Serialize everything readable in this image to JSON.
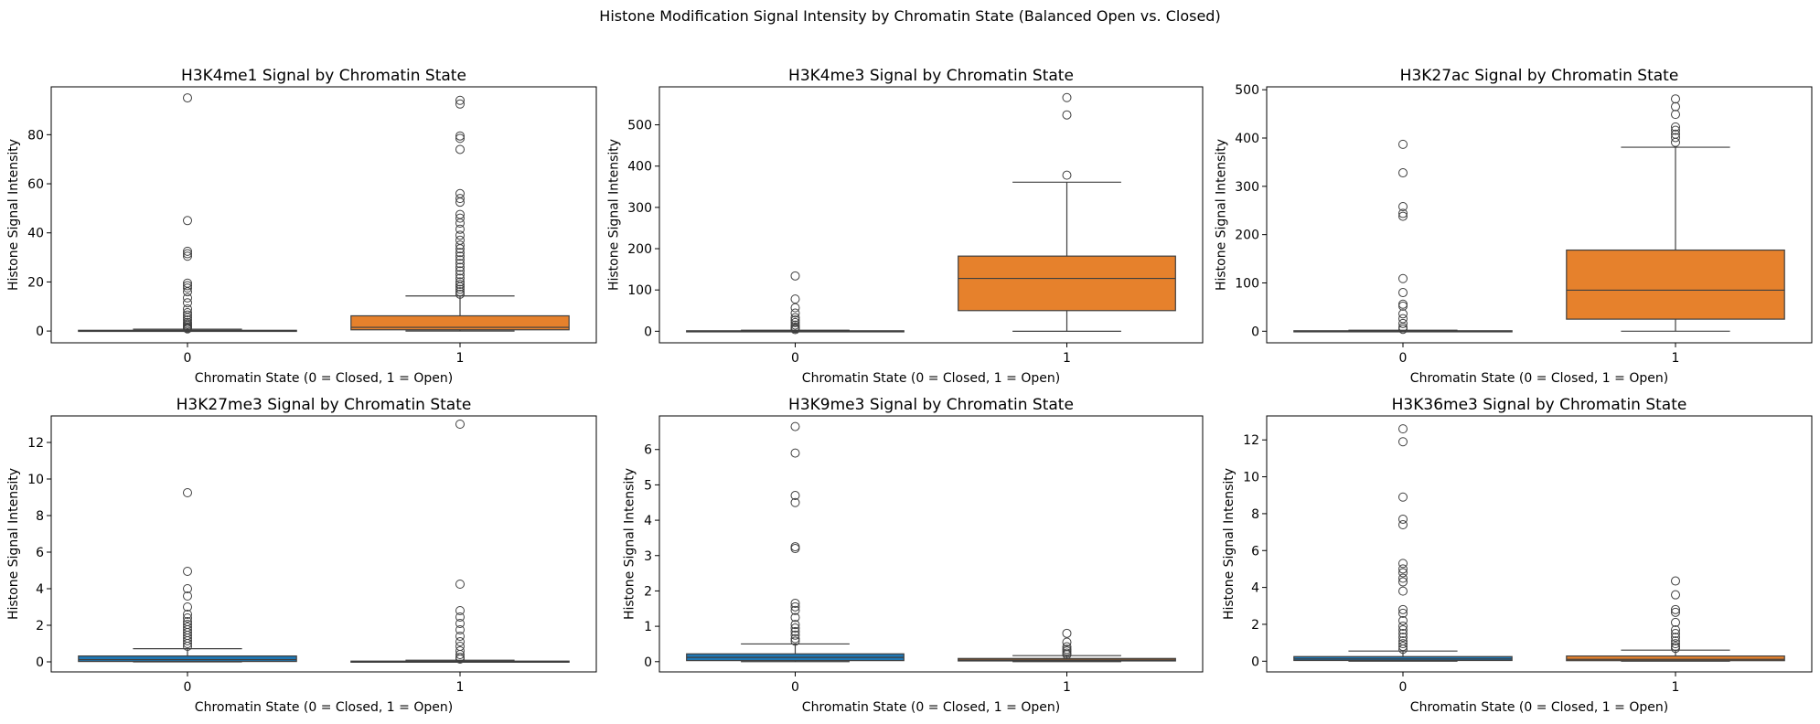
{
  "figure": {
    "suptitle": "Histone Modification Signal Intensity by Chromatin State (Balanced Open vs. Closed)"
  },
  "colors": {
    "closed": "#1f77b4",
    "open": "#e6812c",
    "edge": "#3f3f3f"
  },
  "chart_data": [
    {
      "type": "box",
      "title": "H3K4me1 Signal by Chromatin State",
      "xlabel": "Chromatin State (0 = Closed, 1 = Open)",
      "ylabel": "Histone Signal Intensity",
      "categories": [
        "0",
        "1"
      ],
      "ylim": [
        -4.8,
        99.5
      ],
      "yticks": [
        0,
        20,
        40,
        60,
        80
      ],
      "boxes": [
        {
          "q1": 0.0,
          "median": 0.05,
          "q3": 0.3,
          "whisker_low": 0.0,
          "whisker_high": 0.75,
          "outliers": [
            95,
            45,
            32.5,
            31.5,
            30.5,
            19.5,
            18.5,
            17.5,
            16,
            13.5,
            11.5,
            9,
            7.5,
            6.5,
            5.5,
            4.5,
            3.5,
            2.8,
            2.2,
            1.6,
            1.2,
            0.9
          ]
        },
        {
          "q1": 0.5,
          "median": 1.5,
          "q3": 6.2,
          "whisker_low": 0.0,
          "whisker_high": 14.3,
          "outliers": [
            94,
            92.5,
            79.5,
            78.5,
            74,
            56,
            54,
            52.5,
            47.5,
            46,
            44,
            41.5,
            39,
            37,
            35,
            33.5,
            32,
            30.5,
            29,
            27.5,
            26,
            24.5,
            23,
            21.5,
            20,
            19,
            18,
            17,
            16,
            15
          ]
        }
      ]
    },
    {
      "type": "box",
      "title": "H3K4me3 Signal by Chromatin State",
      "xlabel": "Chromatin State (0 = Closed, 1 = Open)",
      "ylabel": "Histone Signal Intensity",
      "categories": [
        "0",
        "1"
      ],
      "ylim": [
        -28,
        592
      ],
      "yticks": [
        0,
        100,
        200,
        300,
        400,
        500
      ],
      "boxes": [
        {
          "q1": 0.0,
          "median": 0.3,
          "q3": 1.2,
          "whisker_low": 0.0,
          "whisker_high": 2.5,
          "outliers": [
            134,
            78,
            57,
            44,
            33,
            27,
            21,
            15,
            10,
            6.5,
            4
          ]
        },
        {
          "q1": 50,
          "median": 128,
          "q3": 182,
          "whisker_low": 0.0,
          "whisker_high": 361,
          "outliers": [
            566,
            524,
            378
          ]
        }
      ]
    },
    {
      "type": "box",
      "title": "H3K27ac Signal by Chromatin State",
      "xlabel": "Chromatin State (0 = Closed, 1 = Open)",
      "ylabel": "Histone Signal Intensity",
      "categories": [
        "0",
        "1"
      ],
      "ylim": [
        -24,
        506
      ],
      "yticks": [
        0,
        100,
        200,
        300,
        400,
        500
      ],
      "boxes": [
        {
          "q1": 0.0,
          "median": 0.3,
          "q3": 1.0,
          "whisker_low": 0.0,
          "whisker_high": 2.0,
          "outliers": [
            387,
            328,
            258,
            244,
            238,
            109,
            80,
            56,
            52,
            36,
            26,
            16,
            8,
            4
          ]
        },
        {
          "q1": 25,
          "median": 85,
          "q3": 168,
          "whisker_low": 0.0,
          "whisker_high": 381,
          "outliers": [
            481,
            465,
            449,
            423,
            416,
            408,
            401,
            391
          ]
        }
      ]
    },
    {
      "type": "box",
      "title": "H3K27me3 Signal by Chromatin State",
      "xlabel": "Chromatin State (0 = Closed, 1 = Open)",
      "ylabel": "Histone Signal Intensity",
      "categories": [
        "0",
        "1"
      ],
      "ylim": [
        -0.55,
        13.45
      ],
      "yticks": [
        0,
        2,
        4,
        6,
        8,
        10,
        12
      ],
      "boxes": [
        {
          "q1": 0.02,
          "median": 0.12,
          "q3": 0.32,
          "whisker_low": 0.0,
          "whisker_high": 0.72,
          "outliers": [
            9.25,
            4.95,
            4.0,
            3.6,
            3.0,
            2.6,
            2.4,
            2.2,
            2.05,
            1.9,
            1.75,
            1.6,
            1.45,
            1.3,
            1.15,
            1.0,
            0.85
          ]
        },
        {
          "q1": 0.0,
          "median": 0.01,
          "q3": 0.04,
          "whisker_low": 0.0,
          "whisker_high": 0.09,
          "outliers": [
            13.0,
            4.25,
            2.8,
            2.45,
            2.1,
            1.75,
            1.4,
            1.1,
            0.85,
            0.6,
            0.4,
            0.25,
            0.15
          ]
        }
      ]
    },
    {
      "type": "box",
      "title": "H3K9me3 Signal by Chromatin State",
      "xlabel": "Chromatin State (0 = Closed, 1 = Open)",
      "ylabel": "Histone Signal Intensity",
      "categories": [
        "0",
        "1"
      ],
      "ylim": [
        -0.29,
        6.95
      ],
      "yticks": [
        0,
        1,
        2,
        3,
        4,
        5,
        6
      ],
      "boxes": [
        {
          "q1": 0.03,
          "median": 0.12,
          "q3": 0.22,
          "whisker_low": 0.0,
          "whisker_high": 0.5,
          "outliers": [
            6.65,
            5.9,
            4.7,
            4.5,
            3.25,
            3.2,
            1.65,
            1.55,
            1.45,
            1.25,
            1.05,
            0.95,
            0.85,
            0.75,
            0.65,
            0.58
          ]
        },
        {
          "q1": 0.02,
          "median": 0.05,
          "q3": 0.09,
          "whisker_low": 0.0,
          "whisker_high": 0.17,
          "outliers": [
            0.8,
            0.55,
            0.42,
            0.35,
            0.3,
            0.24,
            0.2
          ]
        }
      ]
    },
    {
      "type": "box",
      "title": "H3K36me3 Signal by Chromatin State",
      "xlabel": "Chromatin State (0 = Closed, 1 = Open)",
      "ylabel": "Histone Signal Intensity",
      "categories": [
        "0",
        "1"
      ],
      "ylim": [
        -0.58,
        13.3
      ],
      "yticks": [
        0,
        2,
        4,
        6,
        8,
        10,
        12
      ],
      "boxes": [
        {
          "q1": 0.04,
          "median": 0.12,
          "q3": 0.25,
          "whisker_low": 0.0,
          "whisker_high": 0.55,
          "outliers": [
            12.6,
            11.9,
            8.9,
            7.7,
            7.4,
            5.3,
            5.0,
            4.8,
            4.5,
            4.3,
            3.8,
            2.8,
            2.6,
            2.2,
            1.9,
            1.7,
            1.5,
            1.3,
            1.1,
            0.95,
            0.8,
            0.65
          ]
        },
        {
          "q1": 0.03,
          "median": 0.1,
          "q3": 0.28,
          "whisker_low": 0.0,
          "whisker_high": 0.6,
          "outliers": [
            4.35,
            3.6,
            2.8,
            2.65,
            2.1,
            1.7,
            1.5,
            1.3,
            1.1,
            0.95,
            0.8,
            0.7
          ]
        }
      ]
    }
  ]
}
